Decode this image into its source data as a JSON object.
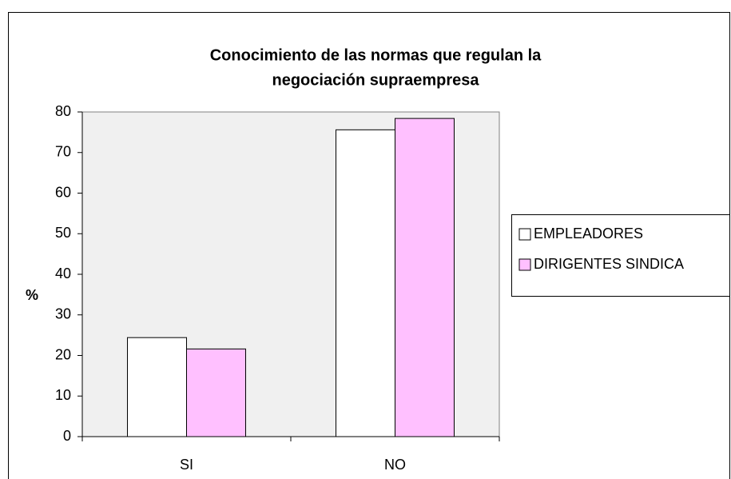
{
  "chart_data": {
    "type": "bar",
    "title": [
      "Conocimiento de las normas que regulan la",
      "negociación supraempresa"
    ],
    "y_label": "%",
    "categories": [
      "SI",
      "NO"
    ],
    "series": [
      {
        "name": "EMPLEADORES",
        "color": "#ffffff",
        "values": [
          24.4,
          75.6
        ]
      },
      {
        "name": "DIRIGENTES SINDICA",
        "color": "#ffc0ff",
        "values": [
          21.6,
          78.4
        ]
      }
    ],
    "ylim": [
      0,
      80
    ],
    "yticks": [
      0,
      10,
      20,
      30,
      40,
      50,
      60,
      70,
      80
    ],
    "grid": false,
    "legend": "right"
  }
}
